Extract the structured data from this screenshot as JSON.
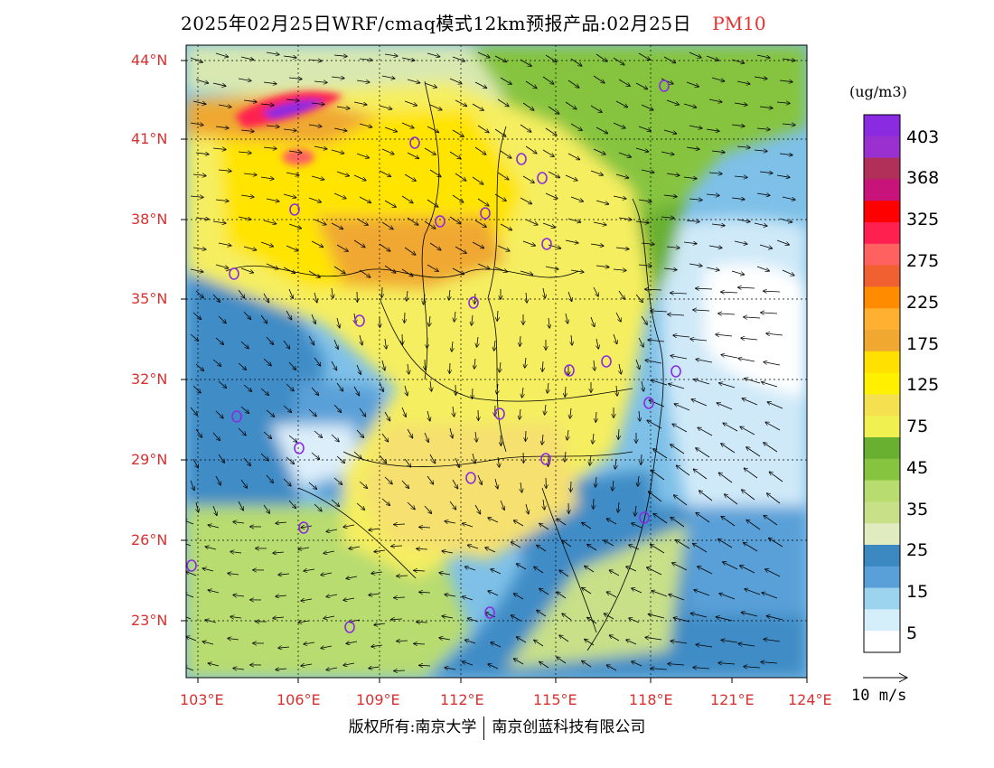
{
  "title": {
    "main": "2025年02月25日WRF/cmaq模式12km预报产品:02月25日",
    "product": "PM10"
  },
  "axes": {
    "lat_labels": [
      "44°N",
      "41°N",
      "38°N",
      "35°N",
      "32°N",
      "29°N",
      "26°N",
      "23°N"
    ],
    "lon_labels": [
      "103°E",
      "106°E",
      "109°E",
      "112°E",
      "115°E",
      "118°E",
      "121°E",
      "124°E"
    ]
  },
  "legend": {
    "unit": "(ug/m3)",
    "labels": [
      "403",
      "368",
      "325",
      "275",
      "225",
      "175",
      "125",
      "75",
      "45",
      "35",
      "25",
      "15",
      "5"
    ],
    "colors": [
      "#8a2be2",
      "#9b30d0",
      "#b0305a",
      "#c8147a",
      "#ff0000",
      "#ff2050",
      "#ff6060",
      "#f06030",
      "#ff8c00",
      "#ffb030",
      "#f0a830",
      "#ffe000",
      "#fff000",
      "#f5e050",
      "#f0f050",
      "#6ab030",
      "#86c440",
      "#b8dc70",
      "#c8e088",
      "#e0ecc0",
      "#3c88c0",
      "#5aa0d8",
      "#9cd4f0",
      "#d4eefa",
      "#ffffff"
    ]
  },
  "wind_reference": {
    "label": "10 m/s"
  },
  "copyright": {
    "left": "版权所有:南京大学",
    "right": "南京创蓝科技有限公司"
  },
  "colors": {
    "frame": "#000000",
    "axis_label": "#d93030",
    "product_label": "#e8302f"
  }
}
